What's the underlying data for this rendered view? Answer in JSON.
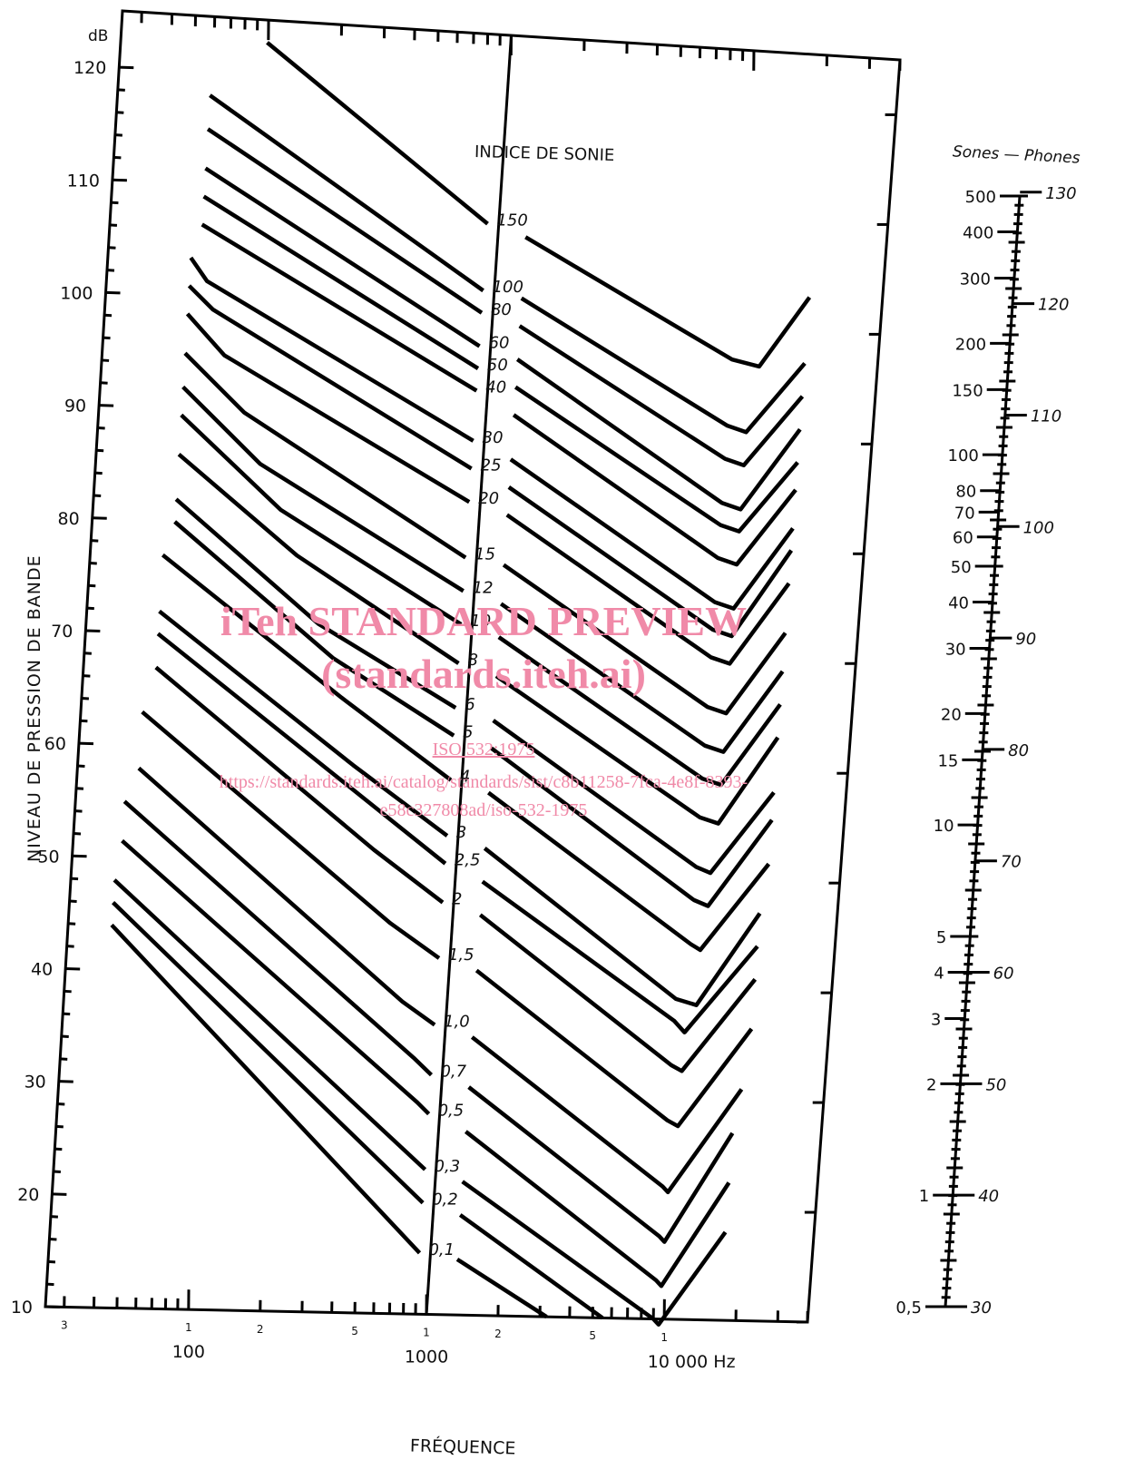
{
  "chart_data": {
    "type": "line",
    "title": "",
    "ylabel": "NIVEAU DE PRESSION DE BANDE",
    "yunit": "dB",
    "xlabel": "FRÉQUENCE",
    "x_scale": "log",
    "xlim": [
      25,
      40000
    ],
    "ylim": [
      10,
      125
    ],
    "y_ticks": [
      "120",
      "110",
      "100",
      "90",
      "80",
      "70",
      "60",
      "50",
      "40",
      "30",
      "20",
      "10"
    ],
    "x_tick_labels": [
      "100",
      "1000",
      "10 000 Hz"
    ],
    "x_minor_labels": [
      "3",
      "1",
      "2",
      "5",
      "1",
      "2",
      "5",
      "1"
    ],
    "curve_label_title": "INDICE DE SONIE",
    "series": [
      {
        "name": "150",
        "points": [
          [
            100,
            123
          ],
          [
            900,
            108
          ]
        ],
        "right": [
          [
            1300,
            107
          ],
          [
            10000,
            97
          ],
          [
            13000,
            96.5
          ],
          [
            20000,
            103
          ]
        ]
      },
      {
        "name": "100",
        "points": [
          [
            60,
            118
          ],
          [
            900,
            102
          ]
        ],
        "right": [
          [
            1300,
            101.5
          ],
          [
            10000,
            91
          ],
          [
            12000,
            90.5
          ],
          [
            20000,
            97
          ]
        ]
      },
      {
        "name": "80",
        "points": [
          [
            60,
            115
          ],
          [
            900,
            100
          ]
        ],
        "right": [
          [
            1300,
            99
          ],
          [
            10000,
            88
          ],
          [
            12000,
            87.5
          ],
          [
            20000,
            94
          ]
        ]
      },
      {
        "name": "60",
        "points": [
          [
            60,
            111.5
          ],
          [
            900,
            97
          ]
        ],
        "right": [
          [
            1300,
            96
          ],
          [
            10000,
            84
          ],
          [
            12000,
            83.5
          ],
          [
            20000,
            91
          ]
        ]
      },
      {
        "name": "50",
        "points": [
          [
            60,
            109
          ],
          [
            900,
            95
          ]
        ],
        "right": [
          [
            1300,
            93.5
          ],
          [
            10000,
            82
          ],
          [
            12000,
            81.5
          ],
          [
            20000,
            88
          ]
        ]
      },
      {
        "name": "40",
        "points": [
          [
            60,
            106.5
          ],
          [
            900,
            93
          ]
        ],
        "right": [
          [
            1300,
            91
          ],
          [
            10000,
            79
          ],
          [
            12000,
            78.5
          ],
          [
            20000,
            85.5
          ]
        ]
      },
      {
        "name": "30",
        "points": [
          [
            55,
            103.5
          ],
          [
            65,
            101.5
          ],
          [
            900,
            88.5
          ]
        ],
        "right": [
          [
            1300,
            87
          ],
          [
            10000,
            75
          ],
          [
            12000,
            74.5
          ],
          [
            20000,
            82
          ]
        ]
      },
      {
        "name": "25",
        "points": [
          [
            55,
            101
          ],
          [
            70,
            99
          ],
          [
            900,
            86
          ]
        ],
        "right": [
          [
            1300,
            84.5
          ],
          [
            10000,
            72.5
          ],
          [
            12000,
            72
          ],
          [
            20000,
            80
          ]
        ]
      },
      {
        "name": "20",
        "points": [
          [
            55,
            98.5
          ],
          [
            80,
            95
          ],
          [
            900,
            83
          ]
        ],
        "right": [
          [
            1300,
            82
          ],
          [
            10000,
            70
          ],
          [
            12000,
            69.5
          ],
          [
            20000,
            77
          ]
        ]
      },
      {
        "name": "15",
        "points": [
          [
            55,
            95
          ],
          [
            100,
            90
          ],
          [
            900,
            78
          ]
        ],
        "right": [
          [
            1300,
            77.5
          ],
          [
            10000,
            65.5
          ],
          [
            12000,
            65
          ],
          [
            20000,
            72.5
          ]
        ]
      },
      {
        "name": "12",
        "points": [
          [
            55,
            92
          ],
          [
            120,
            85.5
          ],
          [
            900,
            75
          ]
        ],
        "right": [
          [
            1300,
            74
          ],
          [
            10000,
            62
          ],
          [
            12000,
            61.5
          ],
          [
            20000,
            69
          ]
        ]
      },
      {
        "name": "10",
        "points": [
          [
            55,
            89.5
          ],
          [
            150,
            81.5
          ],
          [
            900,
            72
          ]
        ],
        "right": [
          [
            1300,
            71
          ],
          [
            10000,
            59
          ],
          [
            12000,
            58.5
          ],
          [
            20000,
            66
          ]
        ]
      },
      {
        "name": "8",
        "points": [
          [
            55,
            86
          ],
          [
            180,
            77.5
          ],
          [
            900,
            68.5
          ]
        ],
        "right": [
          [
            1300,
            67.5
          ],
          [
            10000,
            55.5
          ],
          [
            12000,
            55
          ],
          [
            20000,
            63
          ]
        ]
      },
      {
        "name": "6",
        "points": [
          [
            55,
            82
          ],
          [
            230,
            71.5
          ],
          [
            900,
            64.5
          ]
        ],
        "right": [
          [
            1300,
            63.5
          ],
          [
            10000,
            51
          ],
          [
            11500,
            50.5
          ],
          [
            20000,
            58
          ]
        ]
      },
      {
        "name": "5",
        "points": [
          [
            55,
            80
          ],
          [
            270,
            68.5
          ],
          [
            900,
            62
          ]
        ],
        "right": [
          [
            1300,
            61
          ],
          [
            10000,
            48
          ],
          [
            11500,
            47.5
          ],
          [
            20000,
            55.5
          ]
        ]
      },
      {
        "name": "4",
        "points": [
          [
            50,
            77
          ],
          [
            300,
            65
          ],
          [
            900,
            58
          ]
        ],
        "right": [
          [
            1300,
            57
          ],
          [
            10000,
            44
          ],
          [
            11000,
            43.5
          ],
          [
            20000,
            51.5
          ]
        ]
      },
      {
        "name": "3",
        "points": [
          [
            50,
            72
          ],
          [
            350,
            59
          ],
          [
            900,
            53
          ]
        ],
        "right": [
          [
            1300,
            52
          ],
          [
            9000,
            39
          ],
          [
            11000,
            38.5
          ],
          [
            19000,
            47
          ]
        ]
      },
      {
        "name": "2,5",
        "points": [
          [
            50,
            70
          ],
          [
            400,
            56
          ],
          [
            900,
            50.5
          ]
        ],
        "right": [
          [
            1300,
            49
          ],
          [
            9000,
            37
          ],
          [
            10000,
            36
          ],
          [
            19000,
            44
          ]
        ]
      },
      {
        "name": "2",
        "points": [
          [
            50,
            67
          ],
          [
            450,
            51.5
          ],
          [
            900,
            47
          ]
        ],
        "right": [
          [
            1300,
            46
          ],
          [
            9000,
            33
          ],
          [
            10000,
            32.5
          ],
          [
            19000,
            41
          ]
        ]
      },
      {
        "name": "1,5",
        "points": [
          [
            45,
            63
          ],
          [
            550,
            45
          ],
          [
            900,
            42
          ]
        ],
        "right": [
          [
            1300,
            41
          ],
          [
            9000,
            28
          ],
          [
            10000,
            27.5
          ],
          [
            19000,
            36.5
          ]
        ]
      },
      {
        "name": "1,0",
        "points": [
          [
            45,
            58
          ],
          [
            650,
            38
          ],
          [
            900,
            36
          ]
        ],
        "right": [
          [
            1300,
            35
          ],
          [
            9000,
            22
          ],
          [
            9500,
            21.5
          ],
          [
            18000,
            31
          ]
        ]
      },
      {
        "name": "0,7",
        "points": [
          [
            40,
            55
          ],
          [
            750,
            33
          ],
          [
            900,
            31.5
          ]
        ],
        "right": [
          [
            1300,
            30.5
          ],
          [
            9000,
            17.5
          ],
          [
            9500,
            17
          ],
          [
            17000,
            27
          ]
        ]
      },
      {
        "name": "0,5",
        "points": [
          [
            40,
            51.5
          ],
          [
            800,
            29
          ],
          [
            900,
            28
          ]
        ],
        "right": [
          [
            1300,
            26.5
          ],
          [
            9000,
            13.5
          ],
          [
            9500,
            13
          ],
          [
            17000,
            22.5
          ]
        ]
      },
      {
        "name": "0,3",
        "points": [
          [
            38,
            48
          ],
          [
            900,
            23
          ]
        ],
        "right": [
          [
            1300,
            22
          ],
          [
            9000,
            10
          ],
          [
            9500,
            9.5
          ],
          [
            17000,
            18
          ]
        ]
      },
      {
        "name": "0,2",
        "points": [
          [
            38,
            46
          ],
          [
            900,
            20
          ]
        ],
        "right": [
          [
            1300,
            19
          ],
          [
            5500,
            10
          ]
        ]
      },
      {
        "name": "0,1",
        "points": [
          [
            38,
            44
          ],
          [
            900,
            15.5
          ]
        ],
        "right": [
          [
            1300,
            15
          ],
          [
            3200,
            10
          ]
        ]
      }
    ]
  },
  "scale": {
    "title": "Sones — Phones",
    "sones": [
      "500",
      "400",
      "300",
      "200",
      "150",
      "100",
      "80",
      "70",
      "60",
      "50",
      "40",
      "30",
      "20",
      "15",
      "10",
      "5",
      "4",
      "3",
      "2",
      "1",
      "0,5"
    ],
    "phones": [
      "130",
      "120",
      "110",
      "100",
      "90",
      "80",
      "70",
      "60",
      "50",
      "40",
      "30"
    ]
  },
  "watermark": {
    "line1": "iTeh STANDARD PREVIEW",
    "line2": "(standards.iteh.ai)",
    "line3": "ISO 532:1975",
    "line4": "https://standards.iteh.ai/catalog/standards/sist/c8b11258-7fca-4e8f-8393-",
    "line5": "e58c327808ad/iso-532-1975"
  }
}
